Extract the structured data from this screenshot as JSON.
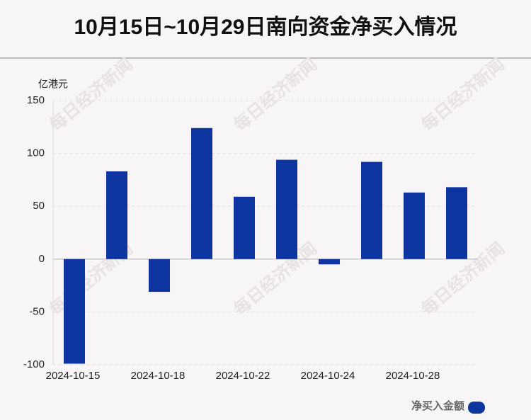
{
  "chart_data": {
    "type": "bar",
    "title": "10月15日~10月29日南向资金净买入情况",
    "y_label": "亿港元",
    "watermark": "每日经济新闻",
    "categories": [
      "2024-10-15",
      null,
      "2024-10-18",
      null,
      "2024-10-22",
      null,
      "2024-10-24",
      null,
      "2024-10-28",
      null
    ],
    "series": [
      {
        "name": "净买入金额",
        "color": "#0c35a0",
        "values": [
          -99,
          83,
          -31,
          124,
          59,
          94,
          -5,
          92,
          63,
          68
        ]
      }
    ],
    "ylim": [
      -100,
      150
    ],
    "yticks": [
      -100,
      -50,
      0,
      50,
      100,
      150
    ],
    "grid": true,
    "legend": "bottom-right"
  }
}
